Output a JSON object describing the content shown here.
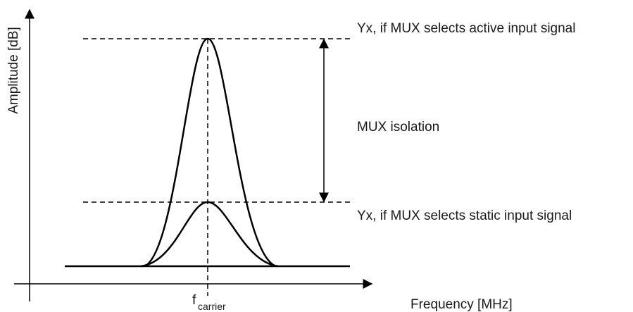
{
  "axes": {
    "y_label": "Amplitude [dB]",
    "x_label": "Frequency [MHz]"
  },
  "marker": {
    "label": "f",
    "subscript": "carrier"
  },
  "annotations": {
    "active": "Yx, if MUX selects active input signal",
    "isolation": "MUX isolation",
    "static": "Yx, if MUX selects static input signal"
  }
}
